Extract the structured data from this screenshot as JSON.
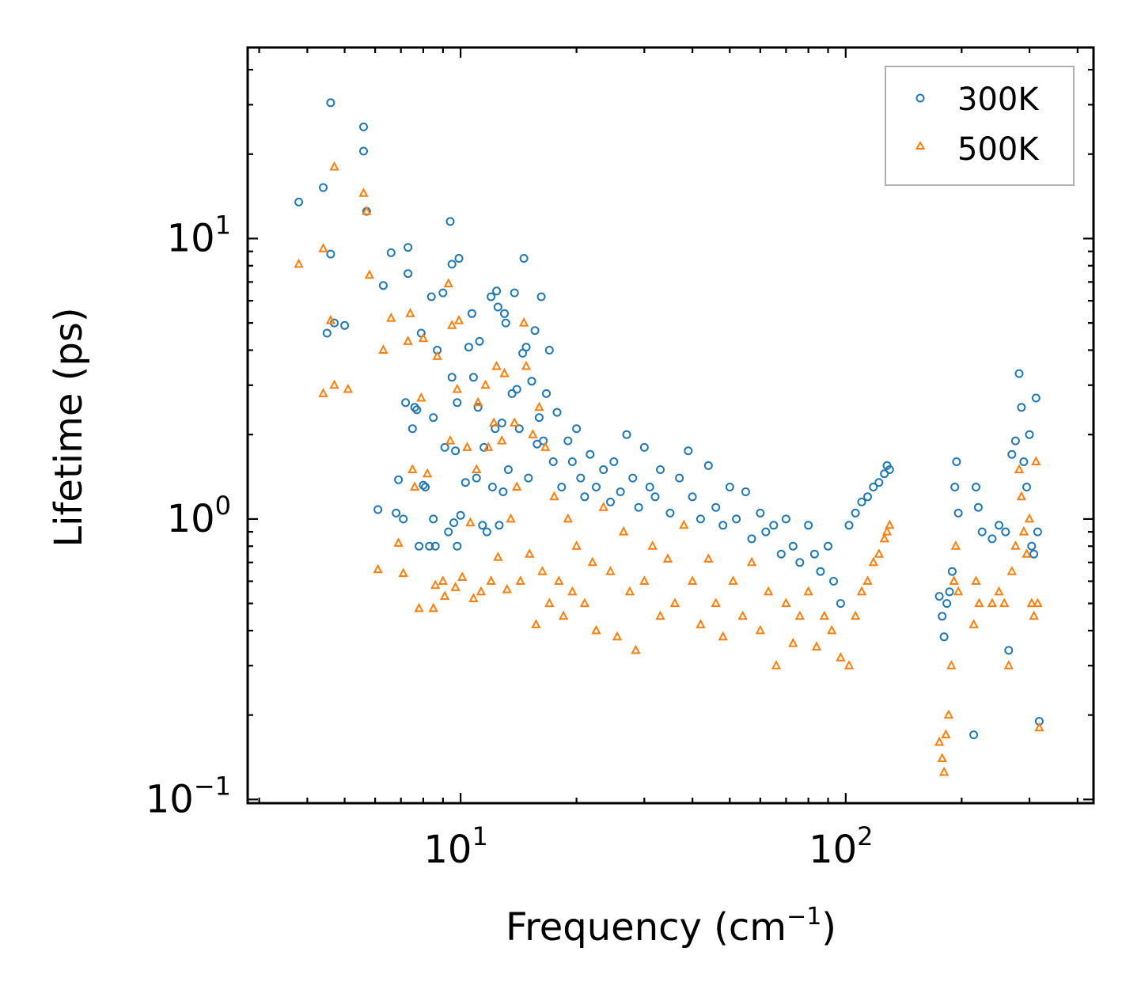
{
  "chart_data": {
    "type": "scatter",
    "xscale": "log",
    "yscale": "log",
    "xlim": [
      2.8,
      440
    ],
    "ylim": [
      0.097,
      48
    ],
    "xlabel": "Frequency (cm",
    "xlabel_sup": "−1",
    "xlabel_close": ")",
    "ylabel": "Lifetime (ps)",
    "legend_position": "top-right",
    "x_ticks": [
      {
        "value": 10,
        "base": "10",
        "exp": "1"
      },
      {
        "value": 100,
        "base": "10",
        "exp": "2"
      }
    ],
    "y_ticks": [
      {
        "value": 0.1,
        "base": "10",
        "exp": "−1"
      },
      {
        "value": 1,
        "base": "10",
        "exp": "0"
      },
      {
        "value": 10,
        "base": "10",
        "exp": "1"
      }
    ],
    "series": [
      {
        "name": "300K",
        "marker": "circle",
        "color": "#1f77b4",
        "points": [
          [
            3.8,
            13.5
          ],
          [
            4.4,
            15.2
          ],
          [
            4.6,
            30.5
          ],
          [
            4.6,
            8.8
          ],
          [
            4.5,
            4.6
          ],
          [
            4.7,
            5.0
          ],
          [
            5.0,
            4.9
          ],
          [
            5.6,
            25.0
          ],
          [
            5.6,
            20.5
          ],
          [
            5.7,
            12.5
          ],
          [
            6.1,
            1.08
          ],
          [
            6.3,
            6.8
          ],
          [
            6.6,
            8.9
          ],
          [
            6.8,
            1.05
          ],
          [
            6.9,
            1.38
          ],
          [
            7.1,
            1.0
          ],
          [
            7.2,
            2.6
          ],
          [
            7.3,
            7.5
          ],
          [
            7.3,
            9.3
          ],
          [
            7.5,
            2.1
          ],
          [
            7.6,
            2.5
          ],
          [
            7.7,
            2.45
          ],
          [
            7.8,
            0.8
          ],
          [
            7.9,
            4.6
          ],
          [
            8.0,
            1.32
          ],
          [
            8.1,
            1.3
          ],
          [
            8.3,
            0.8
          ],
          [
            8.4,
            6.2
          ],
          [
            8.5,
            1.0
          ],
          [
            8.5,
            2.3
          ],
          [
            8.6,
            0.8
          ],
          [
            8.7,
            4.0
          ],
          [
            9.0,
            6.4
          ],
          [
            9.1,
            1.8
          ],
          [
            9.3,
            0.9
          ],
          [
            9.4,
            11.5
          ],
          [
            9.5,
            8.1
          ],
          [
            9.5,
            3.2
          ],
          [
            9.6,
            0.97
          ],
          [
            9.7,
            1.75
          ],
          [
            9.8,
            0.8
          ],
          [
            9.8,
            2.6
          ],
          [
            9.9,
            8.5
          ],
          [
            10.0,
            1.03
          ],
          [
            10.3,
            1.35
          ],
          [
            10.5,
            4.1
          ],
          [
            10.7,
            5.4
          ],
          [
            10.8,
            3.2
          ],
          [
            11.0,
            1.4
          ],
          [
            11.1,
            2.5
          ],
          [
            11.2,
            4.3
          ],
          [
            11.4,
            0.95
          ],
          [
            11.5,
            1.8
          ],
          [
            11.7,
            0.9
          ],
          [
            12.0,
            6.2
          ],
          [
            12.1,
            1.3
          ],
          [
            12.3,
            2.1
          ],
          [
            12.4,
            6.5
          ],
          [
            12.5,
            5.7
          ],
          [
            12.6,
            0.95
          ],
          [
            12.8,
            2.2
          ],
          [
            12.9,
            1.25
          ],
          [
            13.0,
            5.4
          ],
          [
            13.1,
            5.0
          ],
          [
            13.3,
            1.5
          ],
          [
            13.6,
            2.8
          ],
          [
            13.8,
            6.4
          ],
          [
            14.0,
            2.9
          ],
          [
            14.2,
            2.1
          ],
          [
            14.5,
            3.9
          ],
          [
            14.6,
            8.5
          ],
          [
            14.8,
            4.1
          ],
          [
            15.0,
            1.4
          ],
          [
            15.3,
            3.1
          ],
          [
            15.6,
            4.7
          ],
          [
            15.8,
            1.85
          ],
          [
            16.0,
            2.3
          ],
          [
            16.2,
            6.2
          ],
          [
            16.4,
            1.9
          ],
          [
            16.7,
            2.8
          ],
          [
            17.0,
            4.0
          ],
          [
            17.4,
            1.6
          ],
          [
            17.8,
            2.4
          ],
          [
            18.3,
            1.3
          ],
          [
            19.0,
            1.9
          ],
          [
            19.5,
            1.6
          ],
          [
            20.0,
            2.1
          ],
          [
            20.5,
            1.4
          ],
          [
            21.0,
            1.2
          ],
          [
            21.7,
            1.7
          ],
          [
            22.5,
            1.3
          ],
          [
            23.5,
            1.5
          ],
          [
            24.5,
            1.15
          ],
          [
            25.0,
            1.6
          ],
          [
            26.0,
            1.25
          ],
          [
            27.0,
            2.0
          ],
          [
            28.0,
            1.4
          ],
          [
            29.0,
            1.1
          ],
          [
            30.0,
            1.8
          ],
          [
            31.0,
            1.3
          ],
          [
            32.0,
            1.2
          ],
          [
            33.0,
            1.5
          ],
          [
            35.0,
            1.05
          ],
          [
            37.0,
            1.4
          ],
          [
            39.0,
            1.75
          ],
          [
            40.0,
            1.2
          ],
          [
            42.0,
            1.0
          ],
          [
            44.0,
            1.55
          ],
          [
            46.0,
            1.1
          ],
          [
            48.0,
            0.95
          ],
          [
            50.0,
            1.3
          ],
          [
            52.0,
            1.0
          ],
          [
            55.0,
            1.25
          ],
          [
            57.0,
            0.85
          ],
          [
            60.0,
            1.05
          ],
          [
            62.0,
            0.9
          ],
          [
            65.0,
            0.95
          ],
          [
            68.0,
            0.75
          ],
          [
            70.0,
            1.0
          ],
          [
            73.0,
            0.8
          ],
          [
            76.0,
            0.7
          ],
          [
            80.0,
            0.95
          ],
          [
            83.0,
            0.75
          ],
          [
            86.0,
            0.65
          ],
          [
            90.0,
            0.8
          ],
          [
            93.0,
            0.6
          ],
          [
            97.0,
            0.5
          ],
          [
            102.0,
            0.95
          ],
          [
            106.0,
            1.05
          ],
          [
            110.0,
            1.15
          ],
          [
            114.0,
            1.2
          ],
          [
            118.0,
            1.3
          ],
          [
            122.0,
            1.35
          ],
          [
            126.0,
            1.45
          ],
          [
            128.0,
            1.55
          ],
          [
            130.0,
            1.5
          ],
          [
            175.0,
            0.53
          ],
          [
            178.0,
            0.45
          ],
          [
            180.0,
            0.38
          ],
          [
            183.0,
            0.5
          ],
          [
            186.0,
            0.55
          ],
          [
            189.0,
            0.65
          ],
          [
            192.0,
            1.3
          ],
          [
            194.0,
            1.6
          ],
          [
            196.0,
            1.05
          ],
          [
            215.0,
            0.17
          ],
          [
            218.0,
            1.3
          ],
          [
            221.0,
            1.1
          ],
          [
            226.0,
            0.9
          ],
          [
            240.0,
            0.85
          ],
          [
            250.0,
            0.95
          ],
          [
            260.0,
            0.9
          ],
          [
            265.0,
            0.34
          ],
          [
            270.0,
            1.7
          ],
          [
            276.0,
            1.9
          ],
          [
            282.0,
            3.3
          ],
          [
            286.0,
            2.5
          ],
          [
            290.0,
            1.6
          ],
          [
            295.0,
            1.3
          ],
          [
            300.0,
            2.0
          ],
          [
            304.0,
            0.8
          ],
          [
            308.0,
            0.75
          ],
          [
            312.0,
            2.7
          ],
          [
            315.0,
            0.9
          ],
          [
            318.0,
            0.19
          ]
        ]
      },
      {
        "name": "500K",
        "marker": "triangle",
        "color": "#ff7f0e",
        "points": [
          [
            3.8,
            8.1
          ],
          [
            4.4,
            2.8
          ],
          [
            4.4,
            9.2
          ],
          [
            4.6,
            5.1
          ],
          [
            4.7,
            3.0
          ],
          [
            4.7,
            18.0
          ],
          [
            5.1,
            2.9
          ],
          [
            5.6,
            14.5
          ],
          [
            5.7,
            12.5
          ],
          [
            5.8,
            7.4
          ],
          [
            6.1,
            0.66
          ],
          [
            6.3,
            4.0
          ],
          [
            6.6,
            5.2
          ],
          [
            6.9,
            0.82
          ],
          [
            7.1,
            0.64
          ],
          [
            7.3,
            4.3
          ],
          [
            7.4,
            5.4
          ],
          [
            7.5,
            1.5
          ],
          [
            7.6,
            1.3
          ],
          [
            7.8,
            0.48
          ],
          [
            7.9,
            2.7
          ],
          [
            8.0,
            4.4
          ],
          [
            8.2,
            1.45
          ],
          [
            8.5,
            0.48
          ],
          [
            8.6,
            0.58
          ],
          [
            8.7,
            3.8
          ],
          [
            9.0,
            0.6
          ],
          [
            9.1,
            0.53
          ],
          [
            9.3,
            6.9
          ],
          [
            9.4,
            1.9
          ],
          [
            9.5,
            4.9
          ],
          [
            9.7,
            0.57
          ],
          [
            9.8,
            2.9
          ],
          [
            9.9,
            5.1
          ],
          [
            10.1,
            0.62
          ],
          [
            10.4,
            1.8
          ],
          [
            10.6,
            0.97
          ],
          [
            10.8,
            0.52
          ],
          [
            11.0,
            1.5
          ],
          [
            11.1,
            2.6
          ],
          [
            11.3,
            0.55
          ],
          [
            11.6,
            3.0
          ],
          [
            11.8,
            1.8
          ],
          [
            12.0,
            0.6
          ],
          [
            12.2,
            2.2
          ],
          [
            12.4,
            3.5
          ],
          [
            12.5,
            0.73
          ],
          [
            12.8,
            1.9
          ],
          [
            13.0,
            3.3
          ],
          [
            13.2,
            0.56
          ],
          [
            13.5,
            1.0
          ],
          [
            13.8,
            2.2
          ],
          [
            14.0,
            1.3
          ],
          [
            14.3,
            0.6
          ],
          [
            14.6,
            5.0
          ],
          [
            14.8,
            3.5
          ],
          [
            15.1,
            0.75
          ],
          [
            15.4,
            2.0
          ],
          [
            15.7,
            0.42
          ],
          [
            16.0,
            2.5
          ],
          [
            16.3,
            0.65
          ],
          [
            16.6,
            1.8
          ],
          [
            17.0,
            0.5
          ],
          [
            17.5,
            1.2
          ],
          [
            18.0,
            0.6
          ],
          [
            18.5,
            0.45
          ],
          [
            19.0,
            1.0
          ],
          [
            19.5,
            0.55
          ],
          [
            20.0,
            0.8
          ],
          [
            21.0,
            0.5
          ],
          [
            22.0,
            0.7
          ],
          [
            22.5,
            0.4
          ],
          [
            23.5,
            1.1
          ],
          [
            24.5,
            0.65
          ],
          [
            25.5,
            0.38
          ],
          [
            26.5,
            0.9
          ],
          [
            27.5,
            0.55
          ],
          [
            28.5,
            0.34
          ],
          [
            30.0,
            0.6
          ],
          [
            31.5,
            0.8
          ],
          [
            33.0,
            0.45
          ],
          [
            34.5,
            0.72
          ],
          [
            36.0,
            0.5
          ],
          [
            38.0,
            0.95
          ],
          [
            40.0,
            0.6
          ],
          [
            42.0,
            0.42
          ],
          [
            44.0,
            0.72
          ],
          [
            46.0,
            0.5
          ],
          [
            48.0,
            0.38
          ],
          [
            51.0,
            0.6
          ],
          [
            54.0,
            0.45
          ],
          [
            57.0,
            0.7
          ],
          [
            60.0,
            0.4
          ],
          [
            63.0,
            0.55
          ],
          [
            66.0,
            0.3
          ],
          [
            70.0,
            0.5
          ],
          [
            73.0,
            0.36
          ],
          [
            76.0,
            0.45
          ],
          [
            80.0,
            0.55
          ],
          [
            84.0,
            0.35
          ],
          [
            88.0,
            0.45
          ],
          [
            92.0,
            0.4
          ],
          [
            97.0,
            0.32
          ],
          [
            102.0,
            0.3
          ],
          [
            106.0,
            0.45
          ],
          [
            110.0,
            0.55
          ],
          [
            114.0,
            0.6
          ],
          [
            118.0,
            0.7
          ],
          [
            122.0,
            0.75
          ],
          [
            126.0,
            0.85
          ],
          [
            128.0,
            0.9
          ],
          [
            130.0,
            0.95
          ],
          [
            175.0,
            0.16
          ],
          [
            178.0,
            0.14
          ],
          [
            180.0,
            0.125
          ],
          [
            182.0,
            0.17
          ],
          [
            185.0,
            0.2
          ],
          [
            188.0,
            0.3
          ],
          [
            191.0,
            0.6
          ],
          [
            193.0,
            0.8
          ],
          [
            196.0,
            0.55
          ],
          [
            215.0,
            0.42
          ],
          [
            218.0,
            0.6
          ],
          [
            222.0,
            0.5
          ],
          [
            240.0,
            0.5
          ],
          [
            250.0,
            0.55
          ],
          [
            258.0,
            0.5
          ],
          [
            265.0,
            0.3
          ],
          [
            270.0,
            0.65
          ],
          [
            276.0,
            0.8
          ],
          [
            282.0,
            1.5
          ],
          [
            286.0,
            1.2
          ],
          [
            290.0,
            0.9
          ],
          [
            295.0,
            0.75
          ],
          [
            300.0,
            1.0
          ],
          [
            304.0,
            0.5
          ],
          [
            308.0,
            0.45
          ],
          [
            312.0,
            1.6
          ],
          [
            315.0,
            0.5
          ],
          [
            318.0,
            0.18
          ]
        ]
      }
    ]
  }
}
